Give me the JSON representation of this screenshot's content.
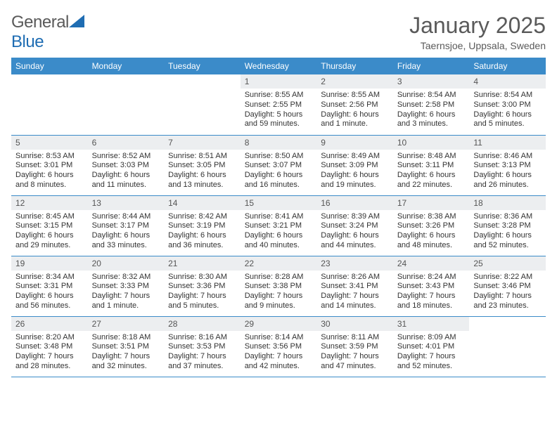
{
  "logo": {
    "text1": "General",
    "text2": "Blue",
    "icon_color": "#1f6db3",
    "text1_color": "#6a6a6a",
    "text2_color": "#1f6db3"
  },
  "title": {
    "month_year": "January 2025",
    "location": "Taernsjoe, Uppsala, Sweden",
    "title_color": "#5a5a5a",
    "title_fontsize": 32,
    "location_fontsize": 14
  },
  "styling": {
    "header_bg": "#3b8bc9",
    "header_text_color": "#ffffff",
    "daynum_bg": "#eceef0",
    "daynum_color": "#555555",
    "row_border_color": "#3b8bc9",
    "body_text_color": "#333333",
    "header_fontsize": 12,
    "daynum_fontsize": 12,
    "body_fontsize": 11,
    "page_bg": "#ffffff"
  },
  "weekdays": [
    "Sunday",
    "Monday",
    "Tuesday",
    "Wednesday",
    "Thursday",
    "Friday",
    "Saturday"
  ],
  "weeks": [
    [
      null,
      null,
      null,
      {
        "n": "1",
        "sr": "Sunrise: 8:55 AM",
        "ss": "Sunset: 2:55 PM",
        "d1": "Daylight: 5 hours",
        "d2": "and 59 minutes."
      },
      {
        "n": "2",
        "sr": "Sunrise: 8:55 AM",
        "ss": "Sunset: 2:56 PM",
        "d1": "Daylight: 6 hours",
        "d2": "and 1 minute."
      },
      {
        "n": "3",
        "sr": "Sunrise: 8:54 AM",
        "ss": "Sunset: 2:58 PM",
        "d1": "Daylight: 6 hours",
        "d2": "and 3 minutes."
      },
      {
        "n": "4",
        "sr": "Sunrise: 8:54 AM",
        "ss": "Sunset: 3:00 PM",
        "d1": "Daylight: 6 hours",
        "d2": "and 5 minutes."
      }
    ],
    [
      {
        "n": "5",
        "sr": "Sunrise: 8:53 AM",
        "ss": "Sunset: 3:01 PM",
        "d1": "Daylight: 6 hours",
        "d2": "and 8 minutes."
      },
      {
        "n": "6",
        "sr": "Sunrise: 8:52 AM",
        "ss": "Sunset: 3:03 PM",
        "d1": "Daylight: 6 hours",
        "d2": "and 11 minutes."
      },
      {
        "n": "7",
        "sr": "Sunrise: 8:51 AM",
        "ss": "Sunset: 3:05 PM",
        "d1": "Daylight: 6 hours",
        "d2": "and 13 minutes."
      },
      {
        "n": "8",
        "sr": "Sunrise: 8:50 AM",
        "ss": "Sunset: 3:07 PM",
        "d1": "Daylight: 6 hours",
        "d2": "and 16 minutes."
      },
      {
        "n": "9",
        "sr": "Sunrise: 8:49 AM",
        "ss": "Sunset: 3:09 PM",
        "d1": "Daylight: 6 hours",
        "d2": "and 19 minutes."
      },
      {
        "n": "10",
        "sr": "Sunrise: 8:48 AM",
        "ss": "Sunset: 3:11 PM",
        "d1": "Daylight: 6 hours",
        "d2": "and 22 minutes."
      },
      {
        "n": "11",
        "sr": "Sunrise: 8:46 AM",
        "ss": "Sunset: 3:13 PM",
        "d1": "Daylight: 6 hours",
        "d2": "and 26 minutes."
      }
    ],
    [
      {
        "n": "12",
        "sr": "Sunrise: 8:45 AM",
        "ss": "Sunset: 3:15 PM",
        "d1": "Daylight: 6 hours",
        "d2": "and 29 minutes."
      },
      {
        "n": "13",
        "sr": "Sunrise: 8:44 AM",
        "ss": "Sunset: 3:17 PM",
        "d1": "Daylight: 6 hours",
        "d2": "and 33 minutes."
      },
      {
        "n": "14",
        "sr": "Sunrise: 8:42 AM",
        "ss": "Sunset: 3:19 PM",
        "d1": "Daylight: 6 hours",
        "d2": "and 36 minutes."
      },
      {
        "n": "15",
        "sr": "Sunrise: 8:41 AM",
        "ss": "Sunset: 3:21 PM",
        "d1": "Daylight: 6 hours",
        "d2": "and 40 minutes."
      },
      {
        "n": "16",
        "sr": "Sunrise: 8:39 AM",
        "ss": "Sunset: 3:24 PM",
        "d1": "Daylight: 6 hours",
        "d2": "and 44 minutes."
      },
      {
        "n": "17",
        "sr": "Sunrise: 8:38 AM",
        "ss": "Sunset: 3:26 PM",
        "d1": "Daylight: 6 hours",
        "d2": "and 48 minutes."
      },
      {
        "n": "18",
        "sr": "Sunrise: 8:36 AM",
        "ss": "Sunset: 3:28 PM",
        "d1": "Daylight: 6 hours",
        "d2": "and 52 minutes."
      }
    ],
    [
      {
        "n": "19",
        "sr": "Sunrise: 8:34 AM",
        "ss": "Sunset: 3:31 PM",
        "d1": "Daylight: 6 hours",
        "d2": "and 56 minutes."
      },
      {
        "n": "20",
        "sr": "Sunrise: 8:32 AM",
        "ss": "Sunset: 3:33 PM",
        "d1": "Daylight: 7 hours",
        "d2": "and 1 minute."
      },
      {
        "n": "21",
        "sr": "Sunrise: 8:30 AM",
        "ss": "Sunset: 3:36 PM",
        "d1": "Daylight: 7 hours",
        "d2": "and 5 minutes."
      },
      {
        "n": "22",
        "sr": "Sunrise: 8:28 AM",
        "ss": "Sunset: 3:38 PM",
        "d1": "Daylight: 7 hours",
        "d2": "and 9 minutes."
      },
      {
        "n": "23",
        "sr": "Sunrise: 8:26 AM",
        "ss": "Sunset: 3:41 PM",
        "d1": "Daylight: 7 hours",
        "d2": "and 14 minutes."
      },
      {
        "n": "24",
        "sr": "Sunrise: 8:24 AM",
        "ss": "Sunset: 3:43 PM",
        "d1": "Daylight: 7 hours",
        "d2": "and 18 minutes."
      },
      {
        "n": "25",
        "sr": "Sunrise: 8:22 AM",
        "ss": "Sunset: 3:46 PM",
        "d1": "Daylight: 7 hours",
        "d2": "and 23 minutes."
      }
    ],
    [
      {
        "n": "26",
        "sr": "Sunrise: 8:20 AM",
        "ss": "Sunset: 3:48 PM",
        "d1": "Daylight: 7 hours",
        "d2": "and 28 minutes."
      },
      {
        "n": "27",
        "sr": "Sunrise: 8:18 AM",
        "ss": "Sunset: 3:51 PM",
        "d1": "Daylight: 7 hours",
        "d2": "and 32 minutes."
      },
      {
        "n": "28",
        "sr": "Sunrise: 8:16 AM",
        "ss": "Sunset: 3:53 PM",
        "d1": "Daylight: 7 hours",
        "d2": "and 37 minutes."
      },
      {
        "n": "29",
        "sr": "Sunrise: 8:14 AM",
        "ss": "Sunset: 3:56 PM",
        "d1": "Daylight: 7 hours",
        "d2": "and 42 minutes."
      },
      {
        "n": "30",
        "sr": "Sunrise: 8:11 AM",
        "ss": "Sunset: 3:59 PM",
        "d1": "Daylight: 7 hours",
        "d2": "and 47 minutes."
      },
      {
        "n": "31",
        "sr": "Sunrise: 8:09 AM",
        "ss": "Sunset: 4:01 PM",
        "d1": "Daylight: 7 hours",
        "d2": "and 52 minutes."
      },
      null
    ]
  ]
}
